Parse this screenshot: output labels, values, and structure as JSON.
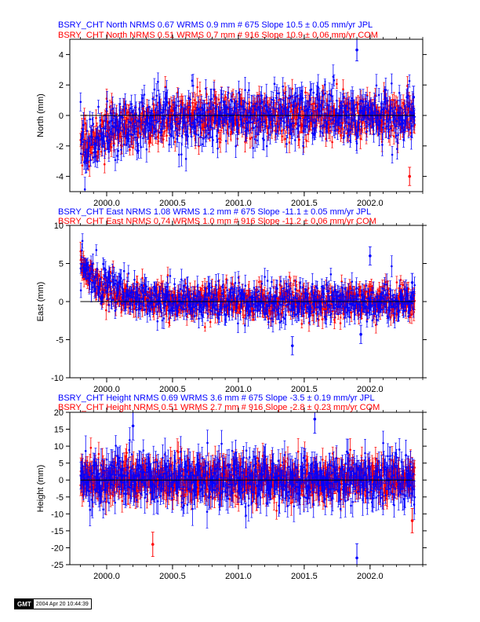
{
  "colors": {
    "jpl": "#0000ff",
    "com": "#ff0000",
    "axis": "#000000",
    "zero_line": "#000000"
  },
  "stamp": {
    "logo": "GMT",
    "date": "2004 Apr 20 10:44:39"
  },
  "chart_data": [
    {
      "type": "scatter",
      "component": "north",
      "title_lines": [
        "BSRY_CHT North NRMS 0.67 WRMS  0.9 mm # 675 Slope  10.5 ±  0.05 mm/yr JPL",
        "BSRY_CHT North NRMS 0.51 WRMS  0.7 mm # 916 Slope  10.9 ±  0.06 mm/yr COM"
      ],
      "ylabel": "North (mm)",
      "xlim": [
        1999.72,
        2002.4
      ],
      "ylim": [
        -5,
        5
      ],
      "yticks": [
        -4,
        -2,
        0,
        2,
        4
      ],
      "xticks": [
        "2000.0",
        "2000.5",
        "2001.0",
        "2001.5",
        "2002.0"
      ],
      "x_start": 1999.8,
      "x_end": 2002.34,
      "series": [
        {
          "id": "JPL",
          "color": "#0000ff",
          "count": 675,
          "rms": 0.9,
          "err": 0.6,
          "drawn_first": false
        },
        {
          "id": "COM",
          "color": "#ff0000",
          "count": 916,
          "rms": 0.7,
          "err": 0.5,
          "drawn_first": true
        }
      ],
      "trend_profile": [
        [
          1999.8,
          -1.6
        ],
        [
          1999.85,
          -2.0
        ],
        [
          2000.0,
          -1.2
        ],
        [
          2000.2,
          -0.7
        ],
        [
          2000.4,
          -0.3
        ],
        [
          2000.6,
          -0.1
        ],
        [
          2001.0,
          0
        ],
        [
          2002.34,
          0
        ]
      ],
      "outliers": [
        {
          "x": 2001.9,
          "y": 4.3,
          "series": "JPL"
        },
        {
          "x": 2002.3,
          "y": -4.0,
          "series": "COM"
        },
        {
          "x": 2002.33,
          "y": 1.2,
          "series": "JPL"
        }
      ]
    },
    {
      "type": "scatter",
      "component": "east",
      "title_lines": [
        "BSRY_CHT East NRMS 1.08 WRMS  1.2 mm # 675 Slope  -11.1 ±  0.05 mm/yr JPL",
        "BSRY_CHT East NRMS 0.74 WRMS  1.0 mm # 916 Slope  -11.2 ±  0.06 mm/yr COM"
      ],
      "ylabel": "East (mm)",
      "xlim": [
        1999.72,
        2002.4
      ],
      "ylim": [
        -10,
        10
      ],
      "yticks": [
        -10,
        -5,
        0,
        5,
        10
      ],
      "xticks": [
        "2000.0",
        "2000.5",
        "2001.0",
        "2001.5",
        "2002.0"
      ],
      "x_start": 1999.8,
      "x_end": 2002.34,
      "series": [
        {
          "id": "JPL",
          "color": "#0000ff",
          "count": 675,
          "rms": 1.2,
          "err": 1.0,
          "drawn_first": false
        },
        {
          "id": "COM",
          "color": "#ff0000",
          "count": 916,
          "rms": 1.0,
          "err": 0.9,
          "drawn_first": true
        }
      ],
      "trend_profile": [
        [
          1999.8,
          5.0
        ],
        [
          1999.9,
          3.0
        ],
        [
          2000.0,
          1.6
        ],
        [
          2000.15,
          0.6
        ],
        [
          2000.4,
          0.2
        ],
        [
          2000.7,
          0
        ],
        [
          2002.34,
          0
        ]
      ],
      "outliers": [
        {
          "x": 2002.0,
          "y": 6.0,
          "series": "JPL"
        },
        {
          "x": 2001.93,
          "y": -4.3,
          "series": "JPL"
        },
        {
          "x": 2001.41,
          "y": -5.8,
          "series": "JPL"
        },
        {
          "x": 2002.32,
          "y": 2.5,
          "series": "JPL"
        }
      ]
    },
    {
      "type": "scatter",
      "component": "height",
      "title_lines": [
        "BSRY_CHT Height NRMS 0.69 WRMS  3.6 mm # 675 Slope   -3.5 ±  0.19 mm/yr JPL",
        "BSRY_CHT Height NRMS 0.51 WRMS  2.7 mm # 916 Slope   -2.8 ±  0.23 mm/yr COM"
      ],
      "ylabel": "Height (mm)",
      "xlim": [
        1999.72,
        2002.4
      ],
      "ylim": [
        -25,
        20
      ],
      "yticks": [
        -25,
        -20,
        -15,
        -10,
        -5,
        0,
        5,
        10,
        15,
        20
      ],
      "xticks": [
        "2000.0",
        "2000.5",
        "2001.0",
        "2001.5",
        "2002.0"
      ],
      "x_start": 1999.8,
      "x_end": 2002.34,
      "series": [
        {
          "id": "JPL",
          "color": "#0000ff",
          "count": 675,
          "rms": 3.6,
          "err": 3.5,
          "drawn_first": false
        },
        {
          "id": "COM",
          "color": "#ff0000",
          "count": 916,
          "rms": 2.7,
          "err": 3.0,
          "drawn_first": true
        }
      ],
      "trend_profile": [
        [
          1999.8,
          0
        ],
        [
          2002.34,
          0
        ]
      ],
      "outliers": [
        {
          "x": 2001.9,
          "y": -23.0,
          "series": "JPL"
        },
        {
          "x": 2000.35,
          "y": -19.0,
          "series": "COM"
        },
        {
          "x": 2000.2,
          "y": 16.0,
          "series": "JPL"
        },
        {
          "x": 2001.58,
          "y": 18.0,
          "series": "JPL"
        },
        {
          "x": 2002.32,
          "y": -12.0,
          "series": "COM"
        }
      ]
    }
  ]
}
